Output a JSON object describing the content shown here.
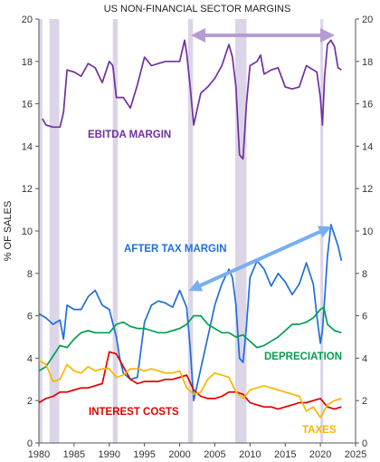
{
  "chart_data": {
    "type": "line",
    "title": "US NON-FINANCIAL SECTOR MARGINS",
    "ylabel": "% OF SALES",
    "xlabel": "",
    "xlim": [
      1980,
      2025
    ],
    "ylim": [
      0,
      20
    ],
    "x_ticks": [
      "1980",
      "1985",
      "1990",
      "1995",
      "2000",
      "2005",
      "2010",
      "2015",
      "2020",
      "2025"
    ],
    "y_ticks": [
      "0",
      "2",
      "4",
      "6",
      "8",
      "10",
      "12",
      "14",
      "16",
      "18",
      "20"
    ],
    "grid": false,
    "recessions": [
      [
        1980.0,
        1980.5
      ],
      [
        1981.5,
        1982.9
      ],
      [
        1990.5,
        1991.2
      ],
      [
        2001.2,
        2001.9
      ],
      [
        2007.9,
        2009.5
      ],
      [
        2020.0,
        2020.4
      ]
    ],
    "colors": {
      "ebitda": "#7030A0",
      "after_tax": "#1F6FD8",
      "depreciation": "#00A050",
      "interest": "#E00000",
      "taxes": "#F5B800",
      "arrow_purple": "#B79CD4",
      "arrow_blue": "#77B0EE",
      "recession": "#DCD5E8"
    },
    "annotations": {
      "ebitda": "EBITDA MARGIN",
      "after_tax": "AFTER TAX MARGIN",
      "depreciation": "DEPRECIATION",
      "interest": "INTEREST COSTS",
      "taxes": "TAXES"
    },
    "series": [
      {
        "name": "EBITDA MARGIN",
        "key": "ebitda",
        "x": [
          1980.5,
          1981,
          1982,
          1983,
          1983.5,
          1984,
          1985,
          1986,
          1987,
          1988,
          1989,
          1990,
          1990.5,
          1991,
          1992,
          1993,
          1994,
          1995,
          1996,
          1997,
          1998,
          1999,
          2000,
          2000.7,
          2001,
          2001.5,
          2002,
          2003,
          2004,
          2005,
          2006,
          2007,
          2007.5,
          2008,
          2008.5,
          2009,
          2009.5,
          2010,
          2011,
          2011.5,
          2012,
          2013,
          2014,
          2015,
          2016,
          2017,
          2018,
          2019,
          2019.5,
          2020,
          2020.3,
          2020.6,
          2021,
          2021.5,
          2022,
          2022.5,
          2023
        ],
        "y": [
          15.3,
          15.0,
          14.9,
          14.9,
          15.6,
          17.6,
          17.5,
          17.3,
          17.9,
          17.7,
          17.0,
          18.0,
          17.8,
          16.3,
          16.3,
          15.8,
          16.9,
          18.2,
          17.8,
          17.9,
          18.0,
          18.0,
          18.0,
          19.0,
          18.4,
          16.8,
          15.0,
          16.5,
          16.8,
          17.2,
          17.8,
          18.8,
          18.2,
          16.8,
          13.6,
          13.4,
          16.0,
          17.8,
          18.0,
          18.3,
          17.4,
          17.6,
          17.7,
          16.8,
          16.7,
          16.8,
          17.8,
          17.6,
          17.5,
          16.3,
          15.0,
          17.3,
          18.8,
          19.0,
          18.7,
          17.7,
          17.6
        ]
      },
      {
        "name": "AFTER TAX MARGIN",
        "key": "after_tax",
        "x": [
          1980,
          1981,
          1982,
          1983,
          1983.5,
          1984,
          1985,
          1986,
          1987,
          1988,
          1989,
          1990,
          1991,
          1991.5,
          1992,
          1993,
          1994,
          1995,
          1996,
          1997,
          1998,
          1999,
          2000,
          2001,
          2001.5,
          2002,
          2003,
          2004,
          2005,
          2006,
          2007,
          2007.5,
          2008,
          2008.5,
          2009,
          2009.5,
          2010,
          2011,
          2012,
          2013,
          2014,
          2015,
          2016,
          2017,
          2018,
          2019,
          2019.5,
          2020,
          2020.3,
          2020.6,
          2021,
          2021.5,
          2022,
          2022.5,
          2023
        ],
        "y": [
          6.1,
          5.9,
          5.6,
          5.8,
          4.9,
          6.5,
          6.3,
          6.3,
          6.9,
          7.2,
          6.5,
          6.3,
          5.0,
          4.0,
          3.3,
          3.0,
          3.1,
          5.7,
          6.5,
          6.7,
          6.6,
          6.4,
          7.2,
          6.4,
          4.5,
          2.0,
          3.5,
          5.0,
          6.5,
          7.5,
          8.2,
          7.8,
          6.5,
          4.0,
          3.8,
          5.5,
          7.8,
          8.6,
          8.2,
          7.4,
          8.0,
          7.6,
          7.0,
          7.5,
          8.5,
          7.5,
          6.0,
          4.7,
          5.3,
          6.8,
          8.8,
          10.3,
          9.8,
          9.3,
          8.6
        ]
      },
      {
        "name": "DEPRECIATION",
        "key": "depreciation",
        "x": [
          1980,
          1981,
          1982,
          1983,
          1984,
          1985,
          1986,
          1987,
          1988,
          1989,
          1990,
          1991,
          1992,
          1993,
          1994,
          1995,
          1996,
          1997,
          1998,
          1999,
          2000,
          2001,
          2002,
          2003,
          2004,
          2005,
          2006,
          2007,
          2008,
          2009,
          2010,
          2011,
          2012,
          2013,
          2014,
          2015,
          2016,
          2017,
          2018,
          2019,
          2020,
          2020.5,
          2021,
          2022,
          2023
        ],
        "y": [
          3.4,
          3.6,
          4.1,
          4.6,
          4.5,
          4.9,
          5.2,
          5.3,
          5.2,
          5.2,
          5.2,
          5.6,
          5.7,
          5.5,
          5.4,
          5.4,
          5.3,
          5.2,
          5.2,
          5.3,
          5.4,
          5.6,
          6.0,
          6.0,
          5.6,
          5.4,
          5.2,
          5.2,
          5.0,
          5.1,
          4.8,
          4.5,
          4.6,
          4.8,
          5.0,
          5.3,
          5.6,
          5.6,
          5.7,
          5.9,
          6.3,
          6.4,
          5.6,
          5.3,
          5.2
        ]
      },
      {
        "name": "INTEREST COSTS",
        "key": "interest",
        "x": [
          1980,
          1981,
          1982,
          1983,
          1984,
          1985,
          1986,
          1987,
          1988,
          1989,
          1990,
          1991,
          1992,
          1993,
          1994,
          1995,
          1996,
          1997,
          1998,
          1999,
          2000,
          2001,
          2002,
          2003,
          2004,
          2005,
          2006,
          2007,
          2008,
          2009,
          2010,
          2011,
          2012,
          2013,
          2014,
          2015,
          2016,
          2017,
          2018,
          2019,
          2020,
          2021,
          2022,
          2023
        ],
        "y": [
          1.9,
          2.1,
          2.2,
          2.4,
          2.4,
          2.5,
          2.6,
          2.6,
          2.7,
          2.8,
          4.3,
          4.2,
          3.6,
          3.0,
          2.8,
          2.9,
          2.9,
          2.9,
          3.0,
          3.0,
          3.1,
          3.2,
          2.5,
          2.2,
          2.1,
          2.1,
          2.2,
          2.4,
          2.4,
          2.3,
          1.9,
          1.8,
          1.7,
          1.7,
          1.6,
          1.7,
          1.8,
          1.9,
          1.9,
          2.0,
          2.1,
          1.7,
          1.6,
          1.7
        ]
      },
      {
        "name": "TAXES",
        "key": "taxes",
        "x": [
          1980,
          1981,
          1982,
          1983,
          1984,
          1985,
          1986,
          1987,
          1988,
          1989,
          1990,
          1991,
          1992,
          1993,
          1994,
          1995,
          1996,
          1997,
          1998,
          1999,
          2000,
          2001,
          2002,
          2003,
          2004,
          2005,
          2006,
          2007,
          2008,
          2009,
          2010,
          2011,
          2012,
          2013,
          2014,
          2015,
          2016,
          2017,
          2018,
          2019,
          2020,
          2021,
          2022,
          2023
        ],
        "y": [
          3.9,
          3.7,
          2.9,
          3.0,
          3.7,
          3.4,
          3.3,
          3.6,
          3.4,
          3.5,
          3.5,
          3.1,
          3.2,
          3.5,
          3.5,
          3.4,
          3.5,
          3.4,
          3.3,
          3.3,
          3.4,
          2.6,
          2.3,
          2.4,
          3.0,
          3.3,
          3.2,
          3.1,
          2.4,
          2.1,
          2.5,
          2.6,
          2.7,
          2.6,
          2.5,
          2.4,
          2.3,
          2.2,
          1.5,
          1.7,
          1.2,
          1.8,
          2.0,
          2.1
        ]
      }
    ]
  }
}
